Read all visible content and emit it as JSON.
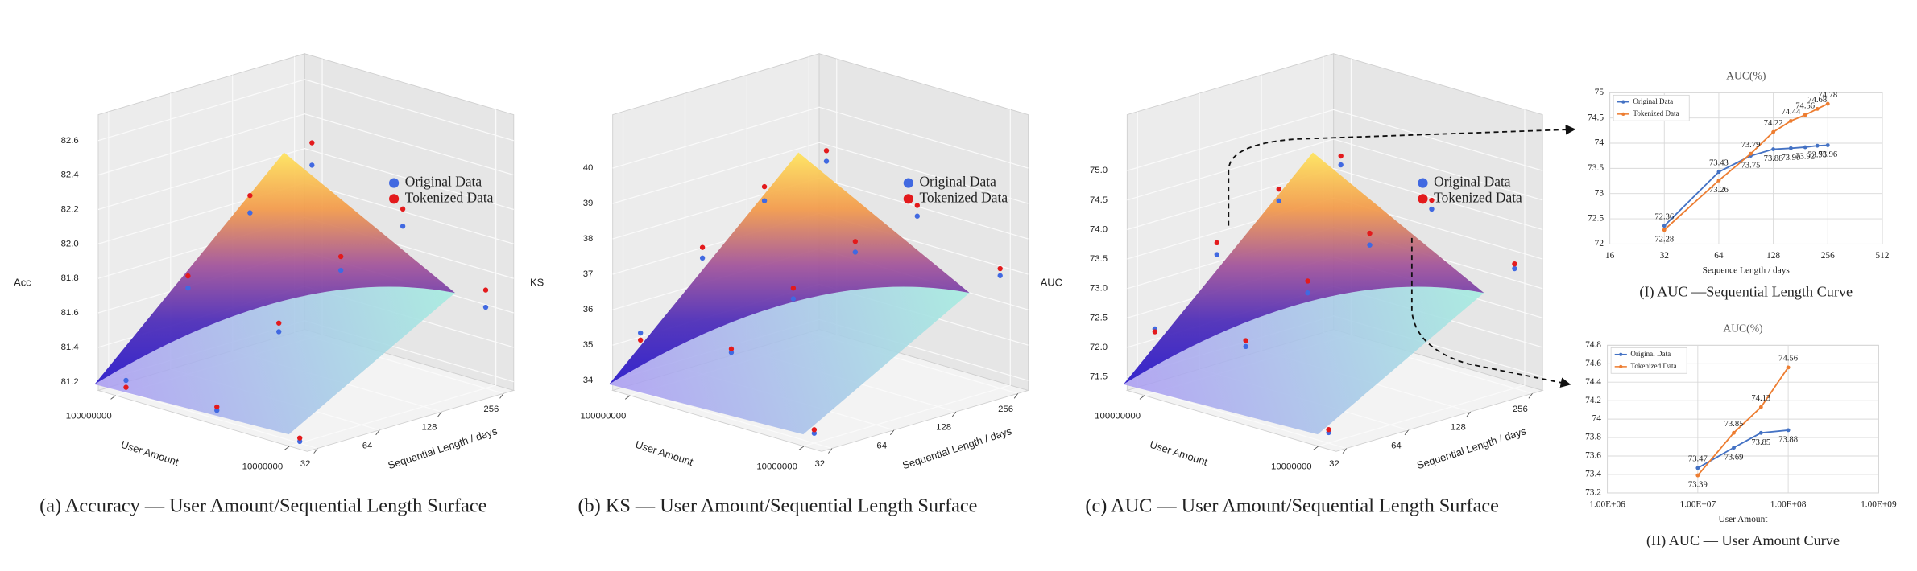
{
  "chart_data": [
    {
      "type": "scatter3d",
      "caption": "(a) Accuracy — User Amount/Sequential Length Surface",
      "xlabel": "Sequential Length / days",
      "ylabel": "User Amount",
      "zlabel": "Acc",
      "log_x": true,
      "log_y": true,
      "legend": "upper right",
      "xlim": [
        28.5,
        287
      ],
      "ylim": [
        7900000,
        126000000
      ],
      "zlim": [
        81.15,
        82.75
      ],
      "xticks": [
        32,
        64,
        128,
        256
      ],
      "yticks": [
        10000000,
        100000000
      ],
      "zticks": [
        81.2,
        81.4,
        81.6,
        81.8,
        {
          "value": 82,
          "label": "82.0"
        },
        82.2,
        82.4,
        82.6
      ],
      "series": [
        {
          "name": "Original Data",
          "color": "#4169e1",
          "x": [
            32,
            64,
            128,
            256,
            32,
            64,
            128,
            256,
            32,
            256
          ],
          "y": [
            100000000,
            100000000,
            100000000,
            100000000,
            30000000,
            30000000,
            30000000,
            30000000,
            10000000,
            10000000
          ],
          "values": [
            81.22,
            81.65,
            81.98,
            82.15,
            81.2,
            81.55,
            81.8,
            81.95,
            81.16,
            81.62
          ]
        },
        {
          "name": "Tokenized Data",
          "color": "#e31a1c",
          "x": [
            32,
            64,
            128,
            256,
            32,
            64,
            128,
            256,
            32,
            256
          ],
          "y": [
            100000000,
            100000000,
            100000000,
            100000000,
            30000000,
            30000000,
            30000000,
            30000000,
            10000000,
            10000000
          ],
          "values": [
            81.18,
            81.72,
            82.08,
            82.28,
            81.22,
            81.6,
            81.88,
            82.05,
            81.18,
            81.72
          ]
        }
      ]
    },
    {
      "type": "scatter3d",
      "caption": "(b) KS — User Amount/Sequential Length Surface",
      "xlabel": "Sequential Length / days",
      "ylabel": "User Amount",
      "zlabel": "KS",
      "log_x": true,
      "log_y": true,
      "legend": "upper right",
      "xlim": [
        28.5,
        287
      ],
      "ylim": [
        7900000,
        126000000
      ],
      "zlim": [
        33.72,
        41.51
      ],
      "xticks": [
        32,
        64,
        128,
        256
      ],
      "yticks": [
        10000000,
        100000000
      ],
      "zticks": [
        34,
        35,
        36,
        37,
        38,
        39,
        40
      ],
      "series": [
        {
          "name": "Original Data",
          "color": "#4169e1",
          "x": [
            32,
            64,
            128,
            256,
            32,
            64,
            128,
            256,
            32,
            256
          ],
          "y": [
            100000000,
            100000000,
            100000000,
            100000000,
            30000000,
            30000000,
            30000000,
            30000000,
            10000000,
            10000000
          ],
          "values": [
            35.4,
            37.0,
            38.1,
            38.7,
            35.6,
            36.6,
            37.4,
            37.9,
            34.0,
            36.9
          ]
        },
        {
          "name": "Tokenized Data",
          "color": "#e31a1c",
          "x": [
            32,
            64,
            128,
            256,
            32,
            64,
            128,
            256,
            32,
            256
          ],
          "y": [
            100000000,
            100000000,
            100000000,
            100000000,
            30000000,
            30000000,
            30000000,
            30000000,
            10000000,
            10000000
          ],
          "values": [
            35.2,
            37.3,
            38.5,
            39.0,
            35.7,
            36.9,
            37.7,
            38.2,
            34.1,
            37.1
          ]
        }
      ]
    },
    {
      "type": "scatter3d",
      "caption": "(c) AUC — User Amount/Sequential Length Surface",
      "xlabel": "Sequential Length / days",
      "ylabel": "User Amount",
      "zlabel": "AUC",
      "log_x": true,
      "log_y": true,
      "legend": "upper right",
      "xlim": [
        28.5,
        287
      ],
      "ylim": [
        7900000,
        126000000
      ],
      "zlim": [
        71.27,
        75.95
      ],
      "xticks": [
        32,
        64,
        128,
        256
      ],
      "yticks": [
        10000000,
        100000000
      ],
      "zticks": [
        71.5,
        {
          "value": 72,
          "label": "72.0"
        },
        72.5,
        {
          "value": 73,
          "label": "73.0"
        },
        73.5,
        {
          "value": 74,
          "label": "74.0"
        },
        74.5,
        {
          "value": 75,
          "label": "75.0"
        }
      ],
      "series": [
        {
          "name": "Original Data",
          "color": "#4169e1",
          "x": [
            32,
            64,
            128,
            256,
            32,
            64,
            128,
            256,
            32,
            256
          ],
          "y": [
            100000000,
            100000000,
            100000000,
            100000000,
            30000000,
            30000000,
            30000000,
            30000000,
            10000000,
            10000000
          ],
          "values": [
            72.35,
            73.3,
            73.9,
            74.2,
            72.5,
            73.1,
            73.6,
            73.9,
            71.45,
            73.3
          ]
        },
        {
          "name": "Tokenized Data",
          "color": "#e31a1c",
          "x": [
            32,
            64,
            128,
            256,
            32,
            64,
            128,
            256,
            32,
            256
          ],
          "y": [
            100000000,
            100000000,
            100000000,
            100000000,
            30000000,
            30000000,
            30000000,
            30000000,
            10000000,
            10000000
          ],
          "values": [
            72.3,
            73.5,
            74.1,
            74.35,
            72.6,
            73.3,
            73.8,
            74.05,
            71.5,
            73.38
          ]
        }
      ]
    },
    {
      "type": "line",
      "title": "AUC(%)",
      "xlabel": "Sequence Length / days",
      "caption": "(I) AUC —Sequential Length Curve",
      "log_x": true,
      "grid": true,
      "legend": "upper left",
      "xlim": [
        16,
        512
      ],
      "xticks": [
        16,
        32,
        64,
        128,
        256,
        512
      ],
      "ylim": [
        72,
        75
      ],
      "yticks": [
        72,
        72.5,
        73,
        73.5,
        74,
        74.5,
        75
      ],
      "series": [
        {
          "name": "Original Data",
          "color": "#4472c4",
          "x": [
            32,
            64,
            96,
            128,
            160,
            192,
            224,
            256
          ],
          "values": [
            72.36,
            73.43,
            73.75,
            73.88,
            73.9,
            73.92,
            73.95,
            73.96
          ],
          "value_labels": [
            "72.36",
            "73.43",
            "73.75",
            "73.88",
            "73.90",
            "73.92",
            "73.95",
            "73.96"
          ]
        },
        {
          "name": "Tokenized Data",
          "color": "#ed7d31",
          "x": [
            32,
            64,
            96,
            128,
            160,
            192,
            224,
            256
          ],
          "values": [
            72.28,
            73.26,
            73.79,
            74.22,
            74.44,
            74.56,
            74.68,
            74.78
          ],
          "value_labels": [
            "72.28",
            "73.26",
            "73.79",
            "74.22",
            "74.44",
            "74.56",
            "74.68",
            "74.78"
          ]
        }
      ]
    },
    {
      "type": "line",
      "title": "AUC(%)",
      "xlabel": "User Amount",
      "caption": "(II) AUC — User Amount Curve",
      "log_x": true,
      "grid": true,
      "legend": "upper left",
      "xlim": [
        1000000,
        1000000000
      ],
      "xticks": [
        {
          "value": 1000000,
          "label": "1.00E+06"
        },
        {
          "value": 10000000,
          "label": "1.00E+07"
        },
        {
          "value": 100000000,
          "label": "1.00E+08"
        },
        {
          "value": 1000000000,
          "label": "1.00E+09"
        }
      ],
      "ylim": [
        73.2,
        74.8
      ],
      "yticks": [
        73.2,
        73.4,
        73.6,
        73.8,
        74,
        74.2,
        74.4,
        74.6,
        74.8
      ],
      "series": [
        {
          "name": "Original Data",
          "color": "#4472c4",
          "x": [
            10000000,
            25000000,
            50000000,
            100000000
          ],
          "values": [
            73.47,
            73.69,
            73.85,
            73.88
          ],
          "value_labels": [
            "73.47",
            "73.69",
            "73.85",
            "73.88"
          ]
        },
        {
          "name": "Tokenized Data",
          "color": "#ed7d31",
          "x": [
            10000000,
            25000000,
            50000000,
            100000000
          ],
          "values": [
            73.39,
            73.85,
            74.13,
            74.56
          ],
          "value_labels": [
            "73.39",
            "73.85",
            "74.13",
            "74.56"
          ]
        }
      ]
    }
  ]
}
